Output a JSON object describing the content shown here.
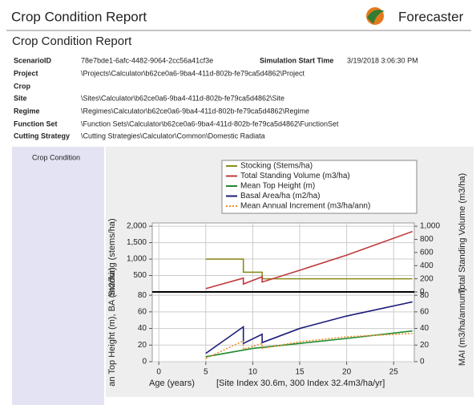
{
  "header": {
    "title": "Crop Condition Report",
    "brand": "Forecaster"
  },
  "report": {
    "title": "Crop Condition Report",
    "start_time": {
      "label": "Simulation Start Time",
      "value": "3/19/2018 3:06:30 PM"
    },
    "fields": [
      {
        "label": "ScenarioID",
        "value": "78e7bde1-6afc-4482-9064-2cc56a41cf3e"
      },
      {
        "label": "Project",
        "value": "\\Projects\\Calculator\\b62ce0a6-9ba4-411d-802b-fe79ca5d4862\\Project"
      },
      {
        "label": "Crop"
      },
      {
        "label": "Site",
        "value": "\\Sites\\Calculator\\b62ce0a6-9ba4-411d-802b-fe79ca5d4862\\Site"
      },
      {
        "label": "Regime",
        "value": "\\Regimes\\Calculator\\b62ce0a6-9ba4-411d-802b-fe79ca5d4862\\Regime"
      },
      {
        "label": "Function Set",
        "value": "\\Function Sets\\Calculator\\b62ce0a6-9ba4-411d-802b-fe79ca5d4862\\FunctionSet"
      },
      {
        "label": "Cutting Strategy",
        "value": "\\Cutting Strategies\\Calculator\\Common\\Domestic Radiata"
      }
    ]
  },
  "section": {
    "label": "Crop Condition"
  },
  "chart_data": [
    {
      "type": "line",
      "grid": true,
      "ylabel": "Stocking (stems/ha)",
      "y2label": "Total Standing Volume (m3/ha)",
      "xlim": [
        -0.7,
        27.2
      ],
      "ylim": [
        0,
        2100
      ],
      "yticks": [
        500,
        {
          "value": 1000,
          "label": "1,000"
        },
        {
          "value": 1500,
          "label": "1,500"
        },
        {
          "value": 2000,
          "label": "2,000"
        }
      ],
      "y2lim": [
        0,
        1050
      ],
      "y2ticks": [
        0,
        200,
        400,
        600,
        800,
        {
          "value": 1000,
          "label": "1,000"
        }
      ],
      "series": [
        {
          "name": "Stocking (Stems/ha)",
          "color": "#8c8c1e",
          "x": [
            5,
            9,
            9,
            11,
            11,
            27
          ],
          "values": [
            1000,
            1000,
            600,
            600,
            400,
            400
          ]
        },
        {
          "name": "Total Standing Volume (m3/ha)",
          "color": "#c0393b",
          "axis": "y2",
          "x": [
            5,
            9,
            9,
            11,
            11,
            15,
            20,
            27
          ],
          "values": [
            50,
            210,
            120,
            230,
            150,
            330,
            560,
            920
          ]
        }
      ]
    },
    {
      "type": "line",
      "grid": true,
      "ylabel": "an Top Height (m), BA (m2/ha)",
      "y2label": "MAI (m3/ha/annum)",
      "xlabel": "Age (years)",
      "note": "[Site Index 30.6m, 300 Index 32.4m3/ha/yr]",
      "xlim": [
        -0.7,
        27.2
      ],
      "xticks": [
        0,
        5,
        10,
        15,
        20,
        25
      ],
      "ylim": [
        0,
        84
      ],
      "yticks": [
        0,
        20,
        40,
        60,
        80
      ],
      "y2lim": [
        0,
        84
      ],
      "y2ticks": [
        0,
        20,
        40,
        60,
        80
      ],
      "series": [
        {
          "name": "Mean Top Height (m)",
          "color": "#1e8a2e",
          "x": [
            5,
            10,
            15,
            20,
            27
          ],
          "values": [
            6,
            16,
            22,
            28,
            37
          ]
        },
        {
          "name": "Basal Area/ha (m2/ha)",
          "color": "#1c1c7a",
          "x": [
            5,
            9,
            9,
            11,
            11,
            15,
            20,
            27
          ],
          "values": [
            10,
            42,
            22,
            33,
            23,
            40,
            55,
            72
          ]
        },
        {
          "name": "Mean Annual Increment (m3/ha/ann)",
          "color": "#f0902a",
          "style": "dotted",
          "axis": "y2",
          "x": [
            5,
            9,
            9,
            11,
            11,
            15,
            20,
            27
          ],
          "values": [
            4,
            25,
            15,
            22,
            16,
            24,
            30,
            34
          ]
        }
      ]
    }
  ]
}
